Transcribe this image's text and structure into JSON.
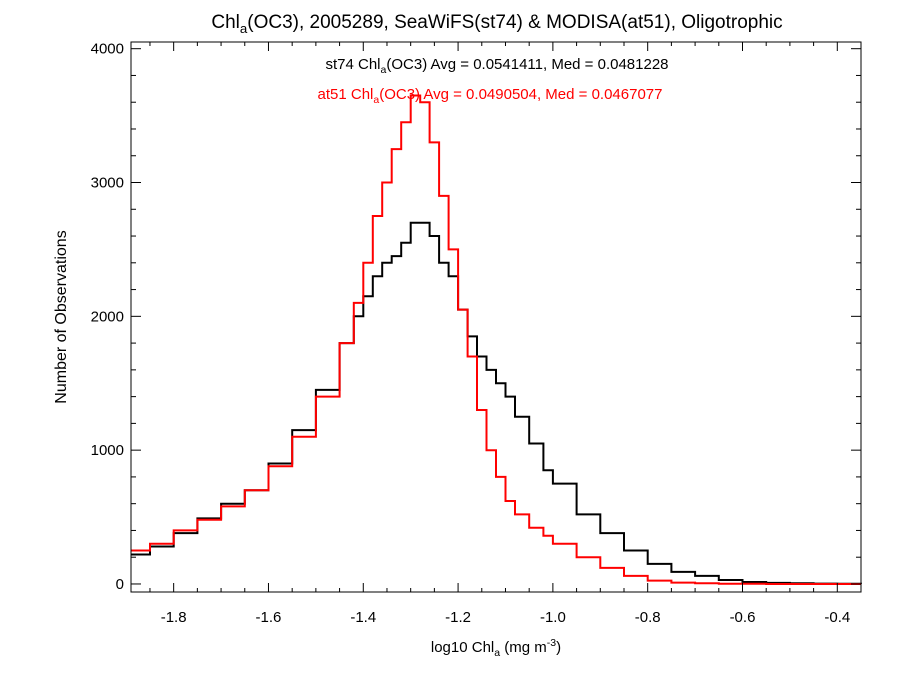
{
  "chart_data": {
    "type": "line",
    "title": {
      "pre": "Chl",
      "sub": "a",
      "post": "(OC3), 2005289, SeaWiFS(st74) & MODISA(at51), Oligotrophic"
    },
    "xlabel": {
      "pre": "log10 Chl",
      "sub": "a",
      "post": " (mg m",
      "sup": "-3",
      "end": ")"
    },
    "ylabel": "Number of Observations",
    "xlim": [
      -1.89,
      -0.35
    ],
    "ylim": [
      -60,
      4050
    ],
    "xticks": [
      -1.8,
      -1.6,
      -1.4,
      -1.2,
      -1.0,
      -0.8,
      -0.6,
      -0.4
    ],
    "xtick_labels": [
      "-1.8",
      "-1.6",
      "-1.4",
      "-1.2",
      "-1.0",
      "-0.8",
      "-0.6",
      "-0.4"
    ],
    "yticks": [
      0,
      1000,
      2000,
      3000,
      4000
    ],
    "ytick_labels": [
      "0",
      "1000",
      "2000",
      "3000",
      "4000"
    ],
    "grid": false,
    "series": [
      {
        "name": "st74",
        "color": "#000000",
        "step": true,
        "x": [
          -1.89,
          -1.85,
          -1.8,
          -1.75,
          -1.7,
          -1.65,
          -1.6,
          -1.55,
          -1.5,
          -1.45,
          -1.42,
          -1.4,
          -1.38,
          -1.36,
          -1.34,
          -1.32,
          -1.3,
          -1.28,
          -1.26,
          -1.24,
          -1.22,
          -1.2,
          -1.18,
          -1.16,
          -1.14,
          -1.12,
          -1.1,
          -1.08,
          -1.05,
          -1.02,
          -1.0,
          -0.95,
          -0.9,
          -0.85,
          -0.8,
          -0.75,
          -0.7,
          -0.65,
          -0.6,
          -0.55,
          -0.5,
          -0.45,
          -0.4,
          -0.35
        ],
        "y": [
          220,
          280,
          380,
          490,
          600,
          700,
          900,
          1150,
          1450,
          1800,
          2000,
          2150,
          2300,
          2400,
          2450,
          2550,
          2700,
          2700,
          2600,
          2400,
          2300,
          2050,
          1850,
          1700,
          1600,
          1500,
          1400,
          1250,
          1050,
          850,
          750,
          520,
          380,
          250,
          150,
          90,
          60,
          30,
          15,
          8,
          5,
          3,
          2,
          1
        ]
      },
      {
        "name": "at51",
        "color": "#ff0000",
        "step": true,
        "x": [
          -1.89,
          -1.85,
          -1.8,
          -1.75,
          -1.7,
          -1.65,
          -1.6,
          -1.55,
          -1.5,
          -1.45,
          -1.42,
          -1.4,
          -1.38,
          -1.36,
          -1.34,
          -1.32,
          -1.3,
          -1.28,
          -1.26,
          -1.24,
          -1.22,
          -1.2,
          -1.18,
          -1.16,
          -1.14,
          -1.12,
          -1.1,
          -1.08,
          -1.05,
          -1.02,
          -1.0,
          -0.95,
          -0.9,
          -0.85,
          -0.8,
          -0.75,
          -0.7,
          -0.65,
          -0.6,
          -0.55,
          -0.5,
          -0.45,
          -0.4,
          -0.35
        ],
        "y": [
          250,
          300,
          400,
          480,
          580,
          700,
          880,
          1100,
          1400,
          1800,
          2100,
          2400,
          2750,
          3000,
          3250,
          3450,
          3650,
          3600,
          3300,
          2900,
          2500,
          2050,
          1700,
          1300,
          1000,
          800,
          620,
          520,
          420,
          360,
          300,
          200,
          120,
          60,
          25,
          10,
          5,
          2,
          1,
          0,
          0,
          0,
          0,
          0
        ]
      }
    ],
    "annotations": [
      {
        "name": "st74",
        "color": "#000000",
        "pre": "st74 Chl",
        "sub": "a",
        "post": "(OC3) Avg = 0.0541411, Med = 0.0481228"
      },
      {
        "name": "at51",
        "color": "#ff0000",
        "pre": "at51 Chl",
        "sub": "a",
        "post": "(OC3) Avg = 0.0490504, Med = 0.0467077"
      }
    ]
  }
}
